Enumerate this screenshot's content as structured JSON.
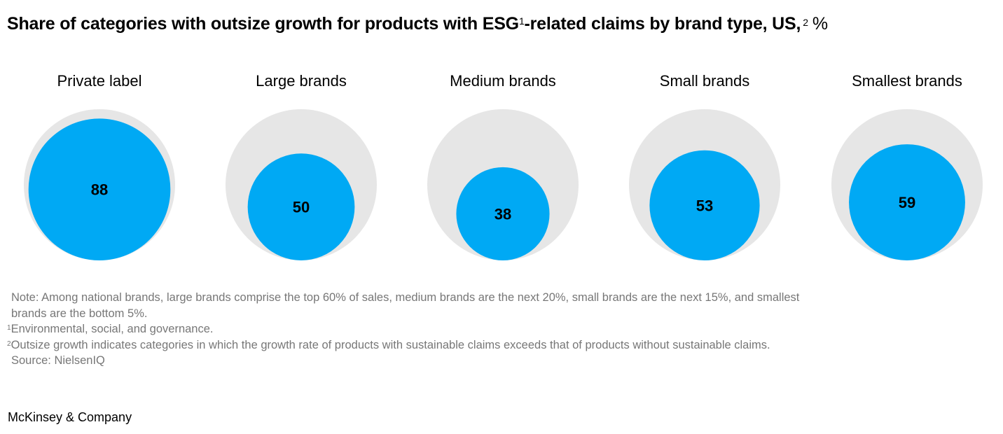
{
  "title": {
    "main": "Share of categories with outsize growth for products with ESG",
    "sup1": "1",
    "mid": "-related claims by brand type, US,",
    "sup2": "2",
    "unit": "%"
  },
  "chart_data": {
    "type": "bubble",
    "max_value": 100,
    "categories": [
      "Private label",
      "Large brands",
      "Medium brands",
      "Small brands",
      "Smallest brands"
    ],
    "values": [
      88,
      50,
      38,
      53,
      59
    ],
    "colors": {
      "value": "#00a9f4",
      "background": "#e6e6e6",
      "label": "#000000"
    }
  },
  "notes": {
    "note_line1": "Note: Among national brands, large brands comprise the top 60% of sales, medium brands are the next 20%, small brands are the next 15%, and smallest",
    "note_line2": "brands are the bottom 5%.",
    "fn1_mark": "1",
    "fn1_text": "Environmental, social, and governance.",
    "fn2_mark": "2",
    "fn2_text": "Outsize growth indicates categories in which the growth rate of products with sustainable claims exceeds that of products without sustainable claims.",
    "source": "Source: NielsenIQ"
  },
  "footer": {
    "brand": "McKinsey & Company"
  }
}
